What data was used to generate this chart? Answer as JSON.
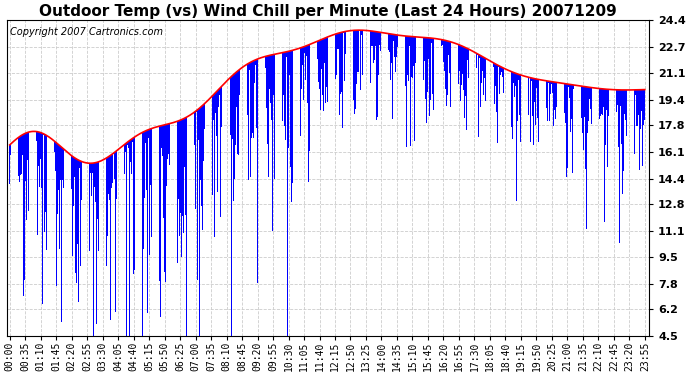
{
  "title": "Outdoor Temp (vs) Wind Chill per Minute (Last 24 Hours) 20071209",
  "copyright": "Copyright 2007 Cartronics.com",
  "ylabel_right_ticks": [
    4.5,
    6.2,
    7.8,
    9.5,
    11.1,
    12.8,
    14.4,
    16.1,
    17.8,
    19.4,
    21.1,
    22.7,
    24.4
  ],
  "ylim": [
    4.5,
    24.4
  ],
  "x_labels": [
    "00:00",
    "00:35",
    "01:10",
    "01:45",
    "02:20",
    "02:55",
    "03:30",
    "04:05",
    "04:40",
    "05:15",
    "05:50",
    "06:25",
    "07:00",
    "07:35",
    "08:10",
    "08:45",
    "09:20",
    "09:55",
    "10:30",
    "11:05",
    "11:40",
    "12:15",
    "12:50",
    "13:25",
    "14:00",
    "14:35",
    "15:10",
    "15:45",
    "16:20",
    "16:55",
    "17:30",
    "18:05",
    "18:40",
    "19:15",
    "19:50",
    "20:25",
    "21:00",
    "21:35",
    "22:10",
    "22:45",
    "23:20",
    "23:55"
  ],
  "background_color": "#ffffff",
  "plot_bg_color": "#ffffff",
  "grid_color": "#cccccc",
  "bar_color": "#0000ff",
  "line_color": "#ff0000",
  "title_fontsize": 11,
  "copyright_fontsize": 7,
  "tick_fontsize": 7
}
